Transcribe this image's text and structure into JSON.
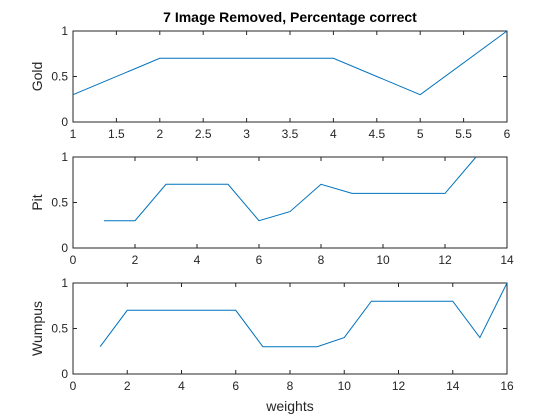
{
  "figure": {
    "title": "7 Image Removed, Percentage correct",
    "xlabel": "weights"
  },
  "colors": {
    "line": "#0072BD",
    "axis": "#262626",
    "background": "#ffffff"
  },
  "chart_data": [
    {
      "type": "line",
      "title": "7 Image Removed, Percentage correct",
      "xlabel": "",
      "ylabel": "Gold",
      "xlim": [
        1,
        6
      ],
      "ylim": [
        0,
        1
      ],
      "xticks": [
        1,
        1.5,
        2,
        2.5,
        3,
        3.5,
        4,
        4.5,
        5,
        5.5,
        6
      ],
      "yticks": [
        0,
        0.5,
        1
      ],
      "grid": false,
      "x": [
        1,
        2,
        3,
        4,
        5,
        6
      ],
      "y": [
        0.3,
        0.7,
        0.7,
        0.7,
        0.3,
        1.0
      ]
    },
    {
      "type": "line",
      "title": "",
      "xlabel": "",
      "ylabel": "Pit",
      "xlim": [
        0,
        14
      ],
      "ylim": [
        0,
        1
      ],
      "xticks": [
        0,
        2,
        4,
        6,
        8,
        10,
        12,
        14
      ],
      "yticks": [
        0,
        0.5,
        1
      ],
      "grid": false,
      "x": [
        1,
        2,
        3,
        4,
        5,
        6,
        7,
        8,
        9,
        10,
        11,
        12,
        13
      ],
      "y": [
        0.3,
        0.3,
        0.7,
        0.7,
        0.7,
        0.3,
        0.4,
        0.7,
        0.6,
        0.6,
        0.6,
        0.6,
        1.0
      ]
    },
    {
      "type": "line",
      "title": "",
      "xlabel": "weights",
      "ylabel": "Wumpus",
      "xlim": [
        0,
        16
      ],
      "ylim": [
        0,
        1
      ],
      "xticks": [
        0,
        2,
        4,
        6,
        8,
        10,
        12,
        14,
        16
      ],
      "yticks": [
        0,
        0.5,
        1
      ],
      "grid": false,
      "x": [
        1,
        2,
        3,
        4,
        5,
        6,
        7,
        8,
        9,
        10,
        11,
        12,
        13,
        14,
        15,
        16
      ],
      "y": [
        0.3,
        0.7,
        0.7,
        0.7,
        0.7,
        0.7,
        0.3,
        0.3,
        0.3,
        0.4,
        0.8,
        0.8,
        0.8,
        0.8,
        0.4,
        1.0
      ]
    }
  ]
}
